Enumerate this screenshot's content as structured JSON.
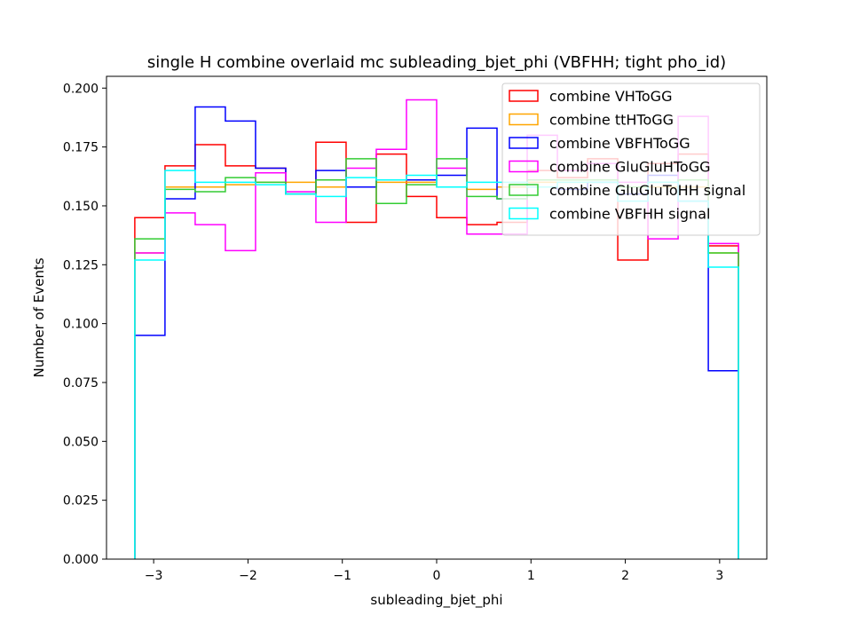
{
  "chart_data": {
    "type": "histogram-step",
    "title": "single H combine overlaid mc subleading_bjet_phi (VBFHH; tight pho_id)",
    "xlabel": "subleading_bjet_phi",
    "ylabel": "Number of Events",
    "xlim": [
      -3.5,
      3.5
    ],
    "ylim": [
      0.0,
      0.205
    ],
    "bin_edges": [
      -3.2,
      -2.88,
      -2.56,
      -2.24,
      -1.92,
      -1.6,
      -1.28,
      -0.96,
      -0.64,
      -0.32,
      0.0,
      0.32,
      0.64,
      0.96,
      1.28,
      1.6,
      1.92,
      2.24,
      2.56,
      2.88,
      3.2
    ],
    "x_ticks": [
      -3,
      -2,
      -1,
      0,
      1,
      2,
      3
    ],
    "x_tick_labels": [
      "−3",
      "−2",
      "−1",
      "0",
      "1",
      "2",
      "3"
    ],
    "y_ticks": [
      0.0,
      0.025,
      0.05,
      0.075,
      0.1,
      0.125,
      0.15,
      0.175,
      0.2
    ],
    "y_tick_labels": [
      "0.000",
      "0.025",
      "0.050",
      "0.075",
      "0.100",
      "0.125",
      "0.150",
      "0.175",
      "0.200"
    ],
    "legend_position": "top-right",
    "series": [
      {
        "name": "combine VHToGG",
        "color": "#ff0000",
        "values": [
          0.145,
          0.167,
          0.176,
          0.167,
          0.166,
          0.155,
          0.177,
          0.143,
          0.172,
          0.154,
          0.145,
          0.142,
          0.143,
          0.165,
          0.162,
          0.17,
          0.127,
          0.168,
          0.172,
          0.133
        ]
      },
      {
        "name": "combine ttHToGG",
        "color": "#ffa500",
        "values": [
          0.13,
          0.158,
          0.158,
          0.159,
          0.16,
          0.16,
          0.158,
          0.158,
          0.16,
          0.16,
          0.158,
          0.157,
          0.158,
          0.16,
          0.16,
          0.16,
          0.158,
          0.158,
          0.158,
          0.13
        ]
      },
      {
        "name": "combine VBFHToGG",
        "color": "#0000ff",
        "values": [
          0.095,
          0.153,
          0.192,
          0.186,
          0.166,
          0.155,
          0.165,
          0.158,
          0.161,
          0.161,
          0.163,
          0.183,
          0.153,
          0.158,
          0.157,
          0.16,
          0.155,
          0.163,
          0.152,
          0.08
        ]
      },
      {
        "name": "combine GluGluHToGG",
        "color": "#ff00ff",
        "values": [
          0.13,
          0.147,
          0.142,
          0.131,
          0.164,
          0.156,
          0.143,
          0.166,
          0.174,
          0.195,
          0.166,
          0.138,
          0.138,
          0.18,
          0.165,
          0.168,
          0.16,
          0.136,
          0.188,
          0.134
        ]
      },
      {
        "name": "combine GluGluToHH signal",
        "color": "#33cc33",
        "values": [
          0.136,
          0.157,
          0.156,
          0.162,
          0.16,
          0.155,
          0.161,
          0.17,
          0.151,
          0.159,
          0.17,
          0.154,
          0.153,
          0.161,
          0.161,
          0.161,
          0.158,
          0.16,
          0.161,
          0.13
        ]
      },
      {
        "name": "combine VBFHH signal",
        "color": "#00ffff",
        "values": [
          0.127,
          0.165,
          0.16,
          0.16,
          0.159,
          0.155,
          0.154,
          0.162,
          0.161,
          0.163,
          0.158,
          0.16,
          0.16,
          0.158,
          0.16,
          0.16,
          0.152,
          0.16,
          0.152,
          0.124
        ]
      }
    ]
  }
}
